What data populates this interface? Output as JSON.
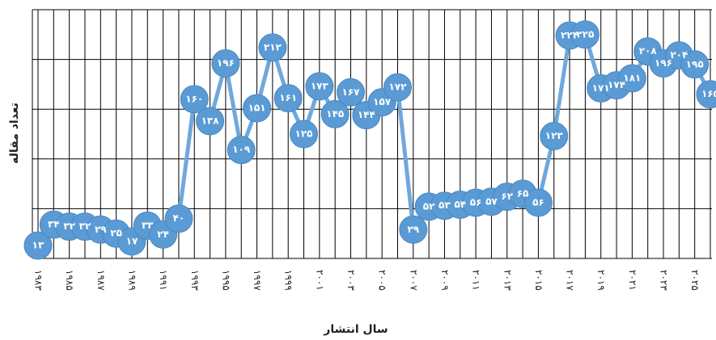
{
  "chart_data": {
    "type": "line",
    "y_label": "تعداد مقاله",
    "x_label": "سال انتشار",
    "categories": [
      "۱۹۸۳",
      null,
      "۱۹۸۵",
      null,
      "۱۹۸۷",
      null,
      "۱۹۸۹",
      null,
      "۱۹۹۱",
      null,
      "۱۹۹۳",
      null,
      "۱۹۹۵",
      null,
      "۱۹۹۷",
      null,
      "۱۹۹۹",
      null,
      "۲۰۰۱",
      null,
      "۲۰۰۳",
      null,
      "۲۰۰۵",
      null,
      "۲۰۰۷",
      null,
      "۲۰۰۹",
      null,
      "۲۰۱۱",
      null,
      "۲۰۱۳",
      null,
      "۲۰۱۵",
      null,
      "۲۰۱۷",
      null,
      "۲۰۱۹",
      null,
      "۲۰۲۱",
      null,
      "۲۰۲۳",
      null,
      "۲۰۲۵",
      null
    ],
    "series": [
      {
        "name": "تعداد مقاله",
        "color": "#5b9bd5",
        "values": [
          13,
          34,
          32,
          32,
          29,
          25,
          17,
          33,
          24,
          40,
          160,
          138,
          196,
          109,
          151,
          212,
          161,
          125,
          173,
          145,
          167,
          144,
          157,
          172,
          29,
          52,
          53,
          54,
          56,
          57,
          62,
          65,
          56,
          123,
          224,
          225,
          171,
          174,
          181,
          208,
          196,
          204,
          195,
          165
        ],
        "value_labels": [
          "۱۳",
          "۳۴",
          "۳۲",
          "۳۲",
          "۲۹",
          "۲۵",
          "۱۷",
          "۳۳",
          "۲۴",
          "۴۰",
          "۱۶۰",
          "۱۳۸",
          "۱۹۶",
          "۱۰۹",
          "۱۵۱",
          "۲۱۲",
          "۱۶۱",
          "۱۲۵",
          "۱۷۳",
          "۱۴۵",
          "۱۶۷",
          "۱۴۴",
          "۱۵۷",
          "۱۷۲",
          "۲۹",
          "۵۲",
          "۵۳",
          "۵۴",
          "۵۶",
          "۵۷",
          "۶۲",
          "۶۵",
          "۵۶",
          "۱۲۳",
          "۲۲۴",
          "۲۲۵",
          "۱۷۱",
          "۱۷۴",
          "۱۸۱",
          "۲۰۸",
          "۱۹۶",
          "۲۰۴",
          "۱۹۵",
          "۱۶۵"
        ]
      }
    ],
    "ylim": [
      0,
      250
    ],
    "yticks": [
      0,
      50,
      100,
      150,
      200,
      250
    ],
    "grid": true
  }
}
